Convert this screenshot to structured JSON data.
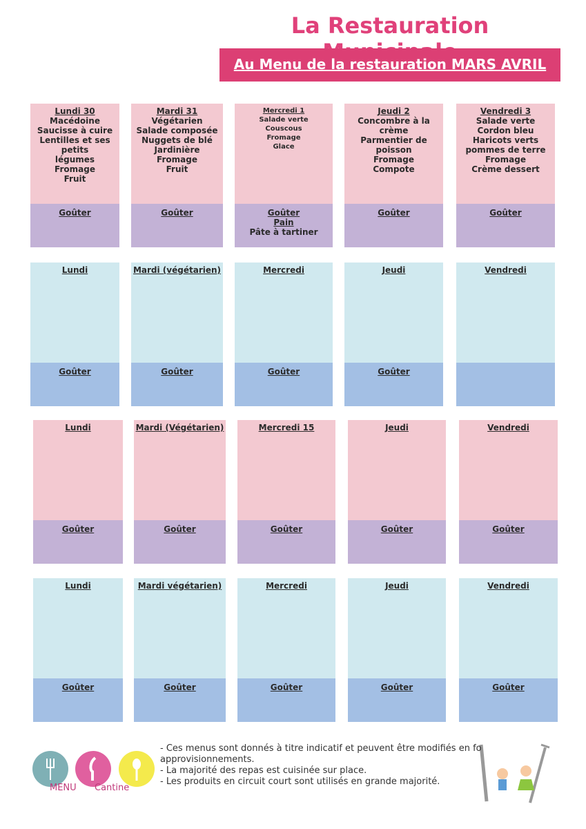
{
  "header": {
    "title": "La Restauration Municipale",
    "subtitle": "Au Menu de la restauration MARS AVRIL"
  },
  "weeks": [
    {
      "days": [
        {
          "header": "Lundi 30",
          "items": [
            "Macédoine",
            "Saucisse à cuire",
            "Lentilles et ses petits",
            "légumes",
            "Fromage",
            "Fruit"
          ],
          "snack": {
            "label": "Goûter"
          }
        },
        {
          "header": "Mardi  31",
          "items": [
            "Végétarien",
            "Salade composée",
            "Nuggets de blé",
            "Jardinière",
            "Fromage",
            "Fruit"
          ],
          "snack": {
            "label": "Goûter"
          }
        },
        {
          "header": "Mercredi 1",
          "items": [
            "Salade verte",
            "Couscous",
            "Fromage",
            "Glace"
          ],
          "snack": {
            "label": "Goûter",
            "items": [
              "Pain",
              "Pâte à tartiner"
            ]
          }
        },
        {
          "header": "Jeudi 2",
          "items": [
            "Concombre à la",
            "crème",
            "Parmentier de",
            "poisson",
            "Fromage",
            "Compote"
          ],
          "snack": {
            "label": "Goûter"
          }
        },
        {
          "header": "Vendredi 3",
          "items": [
            "Salade verte",
            "Cordon bleu",
            "Haricots verts",
            "pommes de terre",
            "Fromage",
            "Crème dessert"
          ],
          "snack": {
            "label": "Goûter"
          }
        }
      ]
    },
    {
      "days": [
        {
          "header": "Lundi",
          "snack": {
            "label": "Goûter"
          }
        },
        {
          "header": "Mardi  (végétarien)",
          "snack": {
            "label": "Goûter"
          }
        },
        {
          "header": "Mercredi",
          "snack": {
            "label": "Goûter"
          }
        },
        {
          "header": "Jeudi",
          "snack": {
            "label": "Goûter"
          }
        },
        {
          "header": "Vendredi"
        }
      ]
    },
    {
      "days": [
        {
          "header": "Lundi",
          "snack": {
            "label": "Goûter"
          }
        },
        {
          "header": "Mardi (Végétarien)",
          "snack": {
            "label": "Goûter"
          }
        },
        {
          "header": "Mercredi 15",
          "snack": {
            "label": "Goûter"
          }
        },
        {
          "header": "Jeudi",
          "snack": {
            "label": "Goûter"
          }
        },
        {
          "header": "Vendredi",
          "snack": {
            "label": "Goûter"
          }
        }
      ]
    },
    {
      "days": [
        {
          "header": "Lundi",
          "snack": {
            "label": "Goûter"
          }
        },
        {
          "header": "Mardi  végétarien)",
          "snack": {
            "label": "Goûter"
          }
        },
        {
          "header": "Mercredi",
          "snack": {
            "label": "Goûter"
          }
        },
        {
          "header": "Jeudi",
          "snack": {
            "label": "Goûter"
          }
        },
        {
          "header": "Vendredi",
          "snack": {
            "label": "Goûter"
          }
        }
      ]
    }
  ],
  "footer": {
    "logo": {
      "word1": "MENU",
      "word2": "Cantine"
    },
    "notes": [
      "- Ces menus sont donnés à titre indicatif et peuvent être modifiés en fo",
      "approvisionnements.",
      "- La majorité des repas est cuisinée sur place.",
      "- Les produits en circuit court sont utilisés en grande majorité."
    ]
  }
}
